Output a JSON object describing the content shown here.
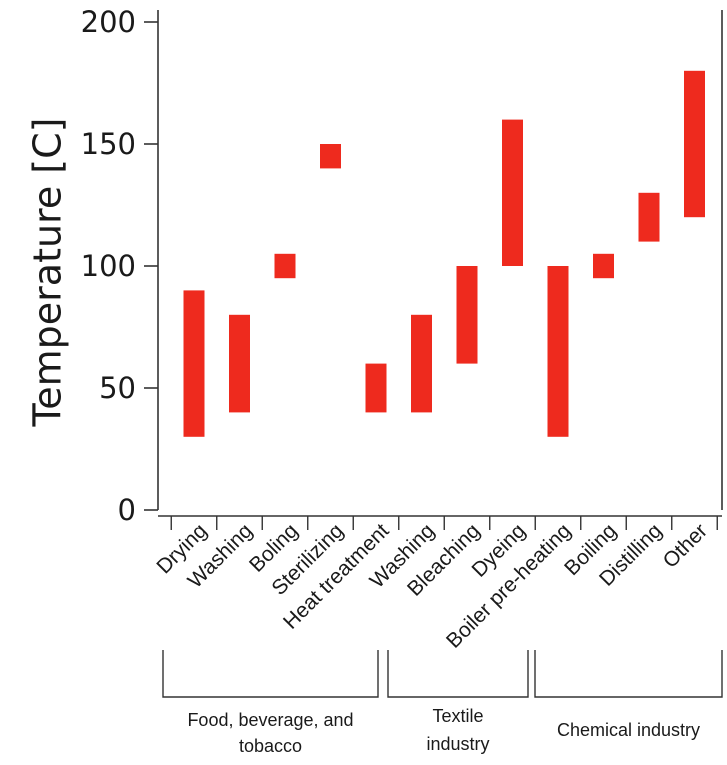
{
  "chart_data": {
    "type": "bar",
    "subtype": "floating-range",
    "ylabel": "Temperature [C]",
    "xlabel": "",
    "ylim": [
      0,
      200
    ],
    "yticks": [
      "0",
      "50",
      "100",
      "150",
      "200"
    ],
    "grid": false,
    "bar_color": "#ee2a1e",
    "categories": [
      "Drying",
      "Washing",
      "Boling",
      "Sterilizing",
      "Heat treatment",
      "Washing",
      "Bleaching",
      "Dyeing",
      "Boiler pre-heating",
      "Boiling",
      "Distilling",
      "Other"
    ],
    "ranges": [
      [
        30,
        90
      ],
      [
        40,
        80
      ],
      [
        95,
        105
      ],
      [
        140,
        150
      ],
      [
        40,
        60
      ],
      [
        40,
        80
      ],
      [
        60,
        100
      ],
      [
        100,
        160
      ],
      [
        30,
        100
      ],
      [
        95,
        105
      ],
      [
        110,
        130
      ],
      [
        120,
        180
      ]
    ],
    "groups": [
      {
        "lines": [
          "Food, beverage, and",
          "tobacco"
        ],
        "categories": [
          "Drying",
          "Washing",
          "Boling",
          "Sterilizing",
          "Heat treatment"
        ]
      },
      {
        "lines": [
          "Textile",
          "industry"
        ],
        "categories": [
          "Washing",
          "Bleaching",
          "Dyeing"
        ]
      },
      {
        "lines": [
          "Chemical industry"
        ],
        "categories": [
          "Boiler pre-heating",
          "Boiling",
          "Distilling",
          "Other"
        ]
      }
    ]
  }
}
